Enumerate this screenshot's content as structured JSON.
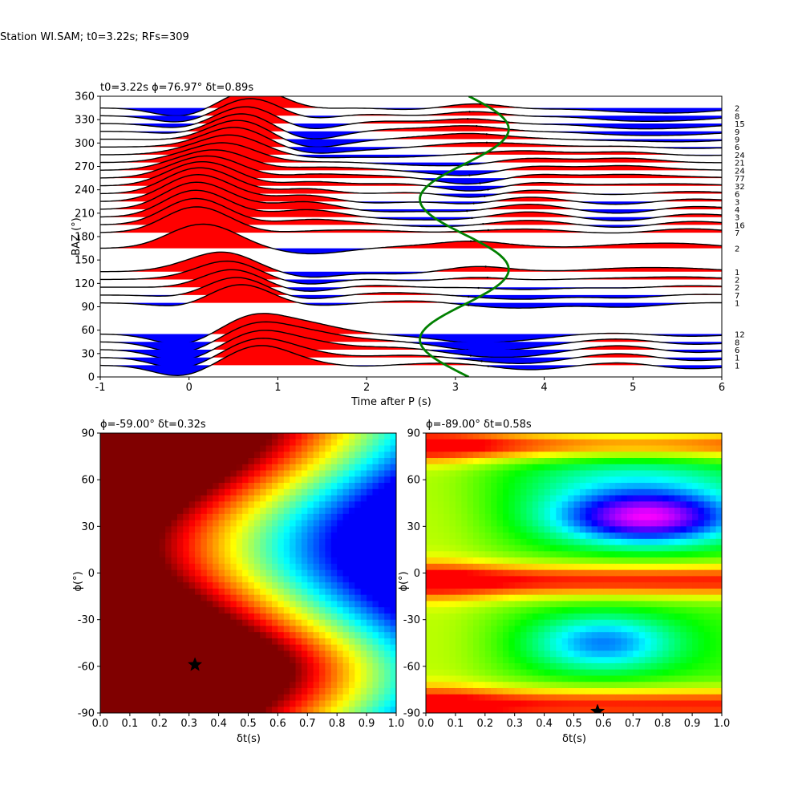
{
  "figure": {
    "suptitle": "Station WI.SAM; t0=3.22s; RFs=309"
  },
  "chart_data": [
    {
      "type": "line",
      "panel": "baz-receiver-functions",
      "title": "t0=3.22s ϕ=76.97° δt=0.89s",
      "xlabel": "Time after P (s)",
      "ylabel": "BAZ (°)",
      "xlim": [
        -1,
        6
      ],
      "ylim": [
        0,
        360
      ],
      "xticks": [
        "-1",
        "0",
        "1",
        "2",
        "3",
        "4",
        "5",
        "6"
      ],
      "yticks": [
        "0",
        "30",
        "60",
        "90",
        "120",
        "150",
        "180",
        "210",
        "240",
        "270",
        "300",
        "330",
        "360"
      ],
      "fill_colors": {
        "positive": "#ff0000",
        "negative": "#0000ff",
        "trace": "#000000",
        "fit": "#008000"
      },
      "traces": [
        {
          "baz": 345,
          "count": "2"
        },
        {
          "baz": 335,
          "count": "8"
        },
        {
          "baz": 325,
          "count": "15"
        },
        {
          "baz": 315,
          "count": "9"
        },
        {
          "baz": 305,
          "count": "9"
        },
        {
          "baz": 295,
          "count": "6"
        },
        {
          "baz": 285,
          "count": "24"
        },
        {
          "baz": 275,
          "count": "21"
        },
        {
          "baz": 265,
          "count": "24"
        },
        {
          "baz": 255,
          "count": "77"
        },
        {
          "baz": 245,
          "count": "32"
        },
        {
          "baz": 235,
          "count": "6"
        },
        {
          "baz": 225,
          "count": "3"
        },
        {
          "baz": 215,
          "count": "4"
        },
        {
          "baz": 205,
          "count": "3"
        },
        {
          "baz": 195,
          "count": "16"
        },
        {
          "baz": 185,
          "count": "7"
        },
        {
          "baz": 165,
          "count": "2"
        },
        {
          "baz": 135,
          "count": "1"
        },
        {
          "baz": 125,
          "count": "2"
        },
        {
          "baz": 115,
          "count": "2"
        },
        {
          "baz": 105,
          "count": "7"
        },
        {
          "baz": 95,
          "count": "1"
        },
        {
          "baz": 55,
          "count": "12"
        },
        {
          "baz": 45,
          "count": "8"
        },
        {
          "baz": 35,
          "count": "6"
        },
        {
          "baz": 25,
          "count": "1"
        },
        {
          "baz": 15,
          "count": "1"
        }
      ]
    },
    {
      "type": "heatmap",
      "panel": "left-grid",
      "title": "ϕ=-59.00° δt=0.32s",
      "xlabel": "δt(s)",
      "ylabel": "ϕ(°)",
      "xlim": [
        0,
        1
      ],
      "ylim": [
        -90,
        90
      ],
      "xticks": [
        "0.0",
        "0.1",
        "0.2",
        "0.3",
        "0.4",
        "0.5",
        "0.6",
        "0.7",
        "0.8",
        "0.9",
        "1.0"
      ],
      "yticks": [
        "-90",
        "-60",
        "-30",
        "0",
        "30",
        "60",
        "90"
      ],
      "best": {
        "dt": 0.32,
        "phi": -59
      },
      "colormap": "jet"
    },
    {
      "type": "heatmap",
      "panel": "right-grid",
      "title": "ϕ=-89.00° δt=0.58s",
      "xlabel": "δt(s)",
      "ylabel": "ϕ(°)",
      "xlim": [
        0,
        1
      ],
      "ylim": [
        -90,
        90
      ],
      "xticks": [
        "0.0",
        "0.1",
        "0.2",
        "0.3",
        "0.4",
        "0.5",
        "0.6",
        "0.7",
        "0.8",
        "0.9",
        "1.0"
      ],
      "yticks": [
        "-90",
        "-60",
        "-30",
        "0",
        "30",
        "60",
        "90"
      ],
      "best": {
        "dt": 0.58,
        "phi": -89
      },
      "colormap": "hsv"
    }
  ]
}
